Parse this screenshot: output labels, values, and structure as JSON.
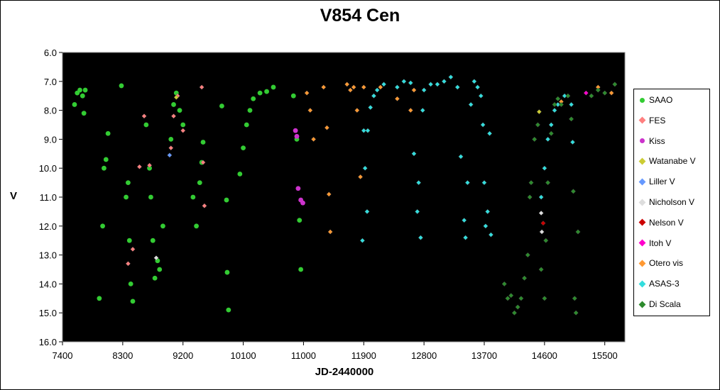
{
  "chart_data": {
    "type": "scatter",
    "title": "V854 Cen",
    "xlabel": "JD-2440000",
    "ylabel": "V",
    "xlim": [
      7400,
      15800
    ],
    "ylim": [
      16.0,
      6.0
    ],
    "y_inverted": true,
    "x_ticks": [
      "7400",
      "8300",
      "9200",
      "10100",
      "11000",
      "11900",
      "12800",
      "13700",
      "14600",
      "15500"
    ],
    "y_ticks": [
      "6.0",
      "7.0",
      "8.0",
      "9.0",
      "10.0",
      "11.0",
      "12.0",
      "13.0",
      "14.0",
      "15.0",
      "16.0"
    ],
    "background": "#000000",
    "legend_position": "right",
    "series": [
      {
        "name": "SAAO",
        "color": "#33cc33",
        "marker": "circle",
        "points": [
          [
            7580,
            7.8
          ],
          [
            7620,
            7.4
          ],
          [
            7660,
            7.3
          ],
          [
            7700,
            7.5
          ],
          [
            7740,
            7.3
          ],
          [
            7720,
            8.1
          ],
          [
            7950,
            14.5
          ],
          [
            8000,
            12.0
          ],
          [
            8020,
            10.0
          ],
          [
            8050,
            9.7
          ],
          [
            8080,
            8.8
          ],
          [
            8280,
            7.15
          ],
          [
            8350,
            11.0
          ],
          [
            8380,
            10.5
          ],
          [
            8400,
            12.5
          ],
          [
            8420,
            14.0
          ],
          [
            8450,
            14.6
          ],
          [
            8650,
            8.5
          ],
          [
            8700,
            10.0
          ],
          [
            8720,
            11.0
          ],
          [
            8750,
            12.5
          ],
          [
            8780,
            13.8
          ],
          [
            8820,
            13.2
          ],
          [
            8850,
            13.5
          ],
          [
            8900,
            12.0
          ],
          [
            9020,
            9.0
          ],
          [
            9060,
            7.8
          ],
          [
            9100,
            7.4
          ],
          [
            9150,
            8.0
          ],
          [
            9200,
            8.5
          ],
          [
            9350,
            11.0
          ],
          [
            9400,
            12.0
          ],
          [
            9450,
            10.5
          ],
          [
            9480,
            9.8
          ],
          [
            9500,
            9.1
          ],
          [
            9780,
            7.85
          ],
          [
            9850,
            11.1
          ],
          [
            9860,
            13.6
          ],
          [
            9880,
            14.9
          ],
          [
            10050,
            10.2
          ],
          [
            10100,
            9.3
          ],
          [
            10150,
            8.5
          ],
          [
            10200,
            8.0
          ],
          [
            10250,
            7.6
          ],
          [
            10350,
            7.4
          ],
          [
            10450,
            7.35
          ],
          [
            10550,
            7.2
          ],
          [
            10850,
            7.5
          ],
          [
            10900,
            9.0
          ],
          [
            10940,
            11.8
          ],
          [
            10960,
            13.5
          ]
        ]
      },
      {
        "name": "FES",
        "color": "#ff8080",
        "marker": "diamond",
        "points": [
          [
            8620,
            8.2
          ],
          [
            8700,
            9.9
          ],
          [
            8380,
            13.3
          ],
          [
            8450,
            12.8
          ],
          [
            8550,
            9.95
          ],
          [
            9020,
            9.3
          ],
          [
            9060,
            8.2
          ],
          [
            9120,
            7.5
          ],
          [
            9200,
            8.7
          ],
          [
            9480,
            7.2
          ],
          [
            9500,
            9.8
          ],
          [
            9520,
            11.3
          ]
        ]
      },
      {
        "name": "Kiss",
        "color": "#cc33cc",
        "marker": "circle",
        "points": [
          [
            10880,
            8.7
          ],
          [
            10900,
            8.9
          ],
          [
            10920,
            10.7
          ],
          [
            10960,
            11.1
          ],
          [
            10990,
            11.2
          ]
        ]
      },
      {
        "name": "Watanabe V",
        "color": "#cccc33",
        "marker": "diamond",
        "points": [
          [
            9100,
            7.55
          ],
          [
            14520,
            8.05
          ]
        ]
      },
      {
        "name": "Liller V",
        "color": "#6699ff",
        "marker": "diamond",
        "points": [
          [
            9000,
            9.55
          ]
        ]
      },
      {
        "name": "Nicholson V",
        "color": "#dddddd",
        "marker": "diamond",
        "points": [
          [
            8800,
            13.1
          ],
          [
            14550,
            11.55
          ],
          [
            14560,
            12.2
          ]
        ]
      },
      {
        "name": "Nelson V",
        "color": "#cc0000",
        "marker": "diamond",
        "points": [
          [
            14580,
            11.9
          ]
        ]
      },
      {
        "name": "Itoh V",
        "color": "#ff00cc",
        "marker": "diamond",
        "points": [
          [
            15220,
            7.4
          ]
        ]
      },
      {
        "name": "Otero vis",
        "color": "#ff9933",
        "marker": "diamond",
        "points": [
          [
            11050,
            7.4
          ],
          [
            11100,
            8.0
          ],
          [
            11150,
            9.0
          ],
          [
            11300,
            7.2
          ],
          [
            11350,
            8.6
          ],
          [
            11380,
            10.9
          ],
          [
            11400,
            12.2
          ],
          [
            11650,
            7.1
          ],
          [
            11700,
            7.3
          ],
          [
            11750,
            7.2
          ],
          [
            11800,
            8.0
          ],
          [
            11850,
            10.3
          ],
          [
            11900,
            7.2
          ],
          [
            12050,
            7.5
          ],
          [
            12150,
            7.2
          ],
          [
            12400,
            7.6
          ],
          [
            12600,
            8.0
          ],
          [
            12650,
            7.3
          ],
          [
            14850,
            7.7
          ],
          [
            15400,
            7.2
          ],
          [
            15600,
            7.4
          ]
        ]
      },
      {
        "name": "ASAS-3",
        "color": "#33dddd",
        "marker": "diamond",
        "points": [
          [
            11880,
            12.5
          ],
          [
            11900,
            8.7
          ],
          [
            11920,
            10.0
          ],
          [
            11950,
            11.5
          ],
          [
            11960,
            8.7
          ],
          [
            12000,
            7.9
          ],
          [
            12050,
            7.5
          ],
          [
            12100,
            7.3
          ],
          [
            12200,
            7.1
          ],
          [
            12400,
            7.2
          ],
          [
            12500,
            7.0
          ],
          [
            12600,
            7.05
          ],
          [
            12650,
            9.5
          ],
          [
            12700,
            11.5
          ],
          [
            12720,
            10.5
          ],
          [
            12750,
            12.4
          ],
          [
            12780,
            8.0
          ],
          [
            12800,
            7.3
          ],
          [
            12900,
            7.1
          ],
          [
            13000,
            7.1
          ],
          [
            13100,
            7.0
          ],
          [
            13200,
            6.85
          ],
          [
            13300,
            7.2
          ],
          [
            13350,
            9.6
          ],
          [
            13400,
            11.8
          ],
          [
            13420,
            12.4
          ],
          [
            13450,
            10.5
          ],
          [
            13500,
            7.8
          ],
          [
            13550,
            7.0
          ],
          [
            13600,
            7.2
          ],
          [
            13650,
            7.5
          ],
          [
            13680,
            8.5
          ],
          [
            13700,
            10.5
          ],
          [
            13720,
            12.0
          ],
          [
            13750,
            11.5
          ],
          [
            13780,
            8.8
          ],
          [
            13800,
            12.3
          ],
          [
            14550,
            11.0
          ],
          [
            14600,
            10.0
          ],
          [
            14650,
            9.0
          ],
          [
            14700,
            8.5
          ],
          [
            14750,
            8.0
          ],
          [
            14800,
            7.8
          ],
          [
            14900,
            7.5
          ],
          [
            15000,
            7.8
          ],
          [
            15020,
            9.1
          ]
        ]
      },
      {
        "name": "Di Scala",
        "color": "#2d8b2d",
        "marker": "diamond",
        "points": [
          [
            14000,
            14.0
          ],
          [
            14050,
            14.5
          ],
          [
            14100,
            14.4
          ],
          [
            14150,
            15.0
          ],
          [
            14200,
            14.8
          ],
          [
            14250,
            14.5
          ],
          [
            14300,
            13.8
          ],
          [
            14350,
            13.0
          ],
          [
            14380,
            11.0
          ],
          [
            14400,
            10.5
          ],
          [
            14450,
            9.0
          ],
          [
            14500,
            8.5
          ],
          [
            14550,
            13.5
          ],
          [
            14600,
            14.5
          ],
          [
            14620,
            12.5
          ],
          [
            14650,
            10.5
          ],
          [
            14700,
            8.8
          ],
          [
            14750,
            7.8
          ],
          [
            14800,
            7.6
          ],
          [
            14850,
            7.8
          ],
          [
            14950,
            7.5
          ],
          [
            15000,
            8.3
          ],
          [
            15030,
            10.8
          ],
          [
            15050,
            14.5
          ],
          [
            15070,
            15.0
          ],
          [
            15100,
            12.2
          ],
          [
            15300,
            7.5
          ],
          [
            15400,
            7.3
          ],
          [
            15500,
            7.4
          ],
          [
            15650,
            7.1
          ]
        ]
      }
    ]
  }
}
